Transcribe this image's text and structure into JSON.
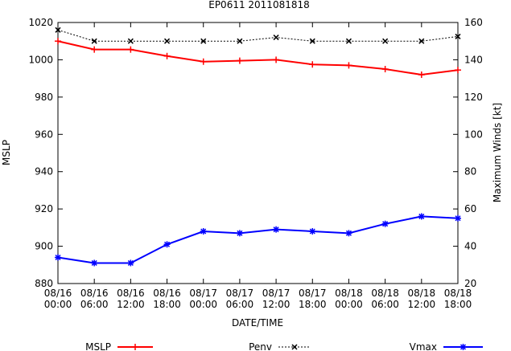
{
  "chart_data": {
    "type": "line",
    "title": "EP0611 2011081818",
    "xlabel": "DATE/TIME",
    "ylabel": "MSLP",
    "y2label": "Maximum Winds [kt]",
    "categories": [
      [
        "08/16",
        "00:00"
      ],
      [
        "08/16",
        "06:00"
      ],
      [
        "08/16",
        "12:00"
      ],
      [
        "08/16",
        "18:00"
      ],
      [
        "08/17",
        "00:00"
      ],
      [
        "08/17",
        "06:00"
      ],
      [
        "08/17",
        "12:00"
      ],
      [
        "08/17",
        "18:00"
      ],
      [
        "08/18",
        "00:00"
      ],
      [
        "08/18",
        "06:00"
      ],
      [
        "08/18",
        "12:00"
      ],
      [
        "08/18",
        "18:00"
      ]
    ],
    "ylim": [
      880,
      1020
    ],
    "yticks": [
      880,
      900,
      920,
      940,
      960,
      980,
      1000,
      1020
    ],
    "y2lim": [
      20,
      160
    ],
    "y2ticks": [
      20,
      40,
      60,
      80,
      100,
      120,
      140,
      160
    ],
    "grid": false,
    "legend_position": "bottom",
    "series": [
      {
        "name": "MSLP",
        "axis": "left",
        "color": "#ff0000",
        "marker": "plus",
        "values": [
          1010,
          1005.5,
          1005.5,
          1002,
          999,
          999.5,
          1000,
          997.5,
          997,
          995,
          992,
          994.5
        ]
      },
      {
        "name": "Penv",
        "axis": "left",
        "color": "#000000",
        "marker": "cross",
        "dashed": true,
        "values": [
          1016,
          1010,
          1010,
          1010,
          1010,
          1010,
          1012,
          1010,
          1010,
          1010,
          1010,
          1012.5
        ]
      },
      {
        "name": "Vmax",
        "axis": "right",
        "color": "#0000ff",
        "marker": "star",
        "values": [
          34,
          31,
          31,
          41,
          48,
          47,
          49,
          48,
          47,
          52,
          56,
          55
        ]
      }
    ]
  }
}
